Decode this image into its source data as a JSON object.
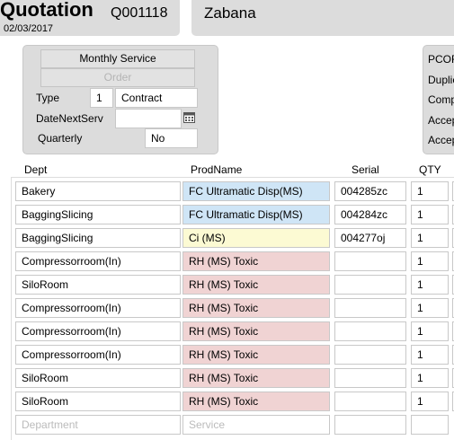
{
  "header": {
    "title": "Quotation",
    "number": "Q001118",
    "date": "02/03/2017",
    "customer": "Zabana"
  },
  "panel": {
    "buttons": [
      "Monthly Service",
      "Order"
    ],
    "fields": [
      {
        "label": "Type",
        "code": "1",
        "value": "Contract"
      },
      {
        "label": "DateNextServ",
        "value": ""
      },
      {
        "label": "Quarterly",
        "value": "No"
      }
    ]
  },
  "side_panel": {
    "labels": [
      "PCOF",
      "Duplic",
      "Comp",
      "Accep",
      "Accep"
    ]
  },
  "table": {
    "columns": [
      "Dept",
      "ProdName",
      "Serial",
      "QTY"
    ],
    "rows": [
      {
        "dept": "Bakery",
        "product": "FC Ultramatic Disp(MS)",
        "serial": "004285zc",
        "qty": 1,
        "color": "#cfe5f6"
      },
      {
        "dept": "BaggingSlicing",
        "product": "FC Ultramatic Disp(MS)",
        "serial": "004284zc",
        "qty": 1,
        "color": "#cfe5f6"
      },
      {
        "dept": "BaggingSlicing",
        "product": "Ci (MS)",
        "serial": "004277oj",
        "qty": 1,
        "color": "#fcfad3"
      },
      {
        "dept": "Compressorroom(In)",
        "product": "RH (MS) Toxic",
        "serial": "",
        "qty": 1,
        "color": "#f0d3d3"
      },
      {
        "dept": "SiloRoom",
        "product": "RH (MS) Toxic",
        "serial": "",
        "qty": 1,
        "color": "#f0d3d3"
      },
      {
        "dept": "Compressorroom(In)",
        "product": "RH (MS) Toxic",
        "serial": "",
        "qty": 1,
        "color": "#f0d3d3"
      },
      {
        "dept": "Compressorroom(In)",
        "product": "RH (MS) Toxic",
        "serial": "",
        "qty": 1,
        "color": "#f0d3d3"
      },
      {
        "dept": "Compressorroom(In)",
        "product": "RH (MS) Toxic",
        "serial": "",
        "qty": 1,
        "color": "#f0d3d3"
      },
      {
        "dept": "SiloRoom",
        "product": "RH (MS) Toxic",
        "serial": "",
        "qty": 1,
        "color": "#f0d3d3"
      },
      {
        "dept": "SiloRoom",
        "product": "RH (MS) Toxic",
        "serial": "",
        "qty": 1,
        "color": "#f0d3d3"
      }
    ],
    "placeholders": [
      "Department",
      "Service"
    ]
  }
}
